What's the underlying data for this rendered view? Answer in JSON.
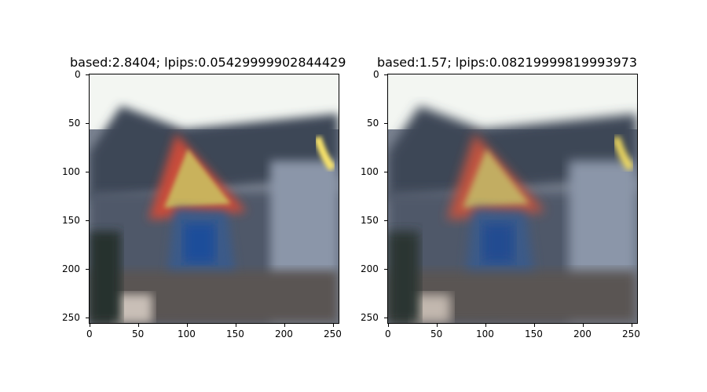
{
  "panels": [
    {
      "title": "based:2.8404; lpips:0.05429999902844429",
      "x_ticks": [
        "0",
        "50",
        "100",
        "150",
        "200",
        "250"
      ],
      "y_ticks": [
        "0",
        "50",
        "100",
        "150",
        "200",
        "250"
      ]
    },
    {
      "title": "based:1.57; lpips:0.08219999819993973",
      "x_ticks": [
        "0",
        "50",
        "100",
        "150",
        "200",
        "250"
      ],
      "y_ticks": [
        "0",
        "50",
        "100",
        "150",
        "200",
        "250"
      ]
    }
  ]
}
